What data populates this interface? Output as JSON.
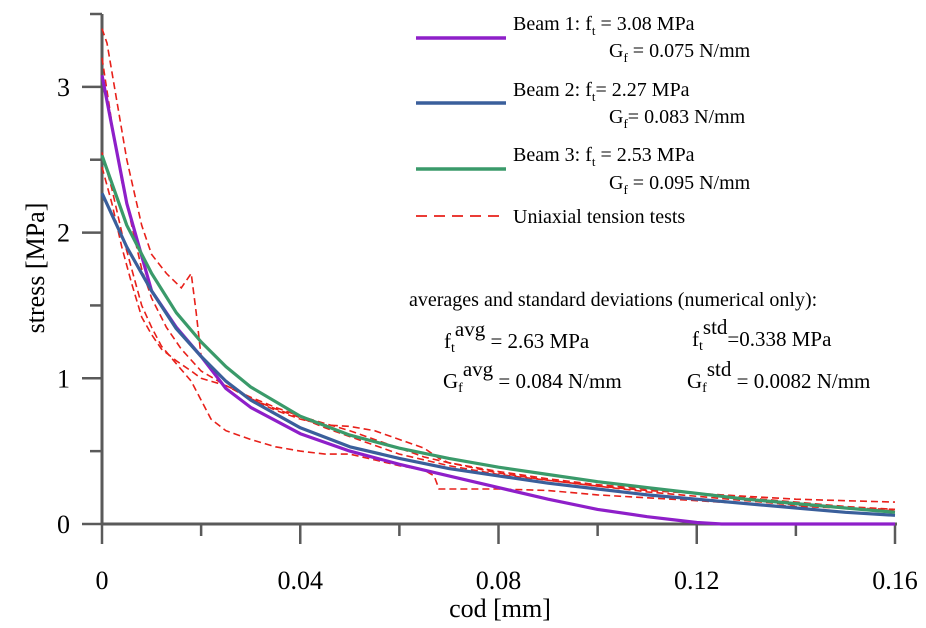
{
  "chart_data": {
    "type": "line",
    "xlabel": "cod [mm]",
    "ylabel": "stress [MPa]",
    "xlim": [
      0,
      0.16
    ],
    "ylim": [
      0,
      3.5
    ],
    "x_ticks": [
      0,
      0.04,
      0.08,
      0.12,
      0.16
    ],
    "x_tick_labels": [
      "0",
      "0.04",
      "0.08",
      "0.12",
      "0.16"
    ],
    "y_ticks": [
      0,
      1,
      2,
      3
    ],
    "y_tick_labels": [
      "0",
      "1",
      "2",
      "3"
    ],
    "grid": false,
    "legend_position": "top-right",
    "series": [
      {
        "name": "Beam 1",
        "legend_line1": "Beam 1: f",
        "legend_line1_sub": "t",
        "legend_line1_tail": " = 3.08 MPa",
        "legend_line2": "G",
        "legend_line2_sub": "f",
        "legend_line2_tail": " = 0.075 N/mm",
        "color": "#8e1fc9",
        "dash": "solid",
        "x": [
          0,
          0.005,
          0.01,
          0.015,
          0.02,
          0.025,
          0.03,
          0.04,
          0.05,
          0.06,
          0.07,
          0.08,
          0.09,
          0.1,
          0.11,
          0.12,
          0.125,
          0.13,
          0.14,
          0.15,
          0.16
        ],
        "y": [
          3.08,
          2.2,
          1.6,
          1.35,
          1.15,
          0.93,
          0.8,
          0.62,
          0.5,
          0.41,
          0.33,
          0.25,
          0.17,
          0.1,
          0.05,
          0.01,
          0,
          0,
          0,
          0,
          0
        ]
      },
      {
        "name": "Beam 2",
        "legend_line1": "Beam 2: f",
        "legend_line1_sub": "t",
        "legend_line1_tail": "= 2.27 MPa",
        "legend_line2": "G",
        "legend_line2_sub": "f",
        "legend_line2_tail": "= 0.083 N/mm",
        "color": "#3a5f9b",
        "dash": "solid",
        "x": [
          0,
          0.005,
          0.01,
          0.015,
          0.02,
          0.025,
          0.03,
          0.04,
          0.05,
          0.06,
          0.07,
          0.08,
          0.09,
          0.1,
          0.11,
          0.12,
          0.13,
          0.14,
          0.15,
          0.16
        ],
        "y": [
          2.27,
          1.9,
          1.6,
          1.34,
          1.15,
          0.98,
          0.85,
          0.66,
          0.53,
          0.45,
          0.38,
          0.33,
          0.28,
          0.24,
          0.2,
          0.17,
          0.14,
          0.11,
          0.08,
          0.06
        ]
      },
      {
        "name": "Beam 3",
        "legend_line1": "Beam 3: f",
        "legend_line1_sub": "t",
        "legend_line1_tail": " = 2.53 MPa",
        "legend_line2": "G",
        "legend_line2_sub": "f",
        "legend_line2_tail": " = 0.095 N/mm",
        "color": "#3a9a6a",
        "dash": "solid",
        "x": [
          0,
          0.005,
          0.01,
          0.015,
          0.02,
          0.025,
          0.03,
          0.04,
          0.05,
          0.06,
          0.07,
          0.08,
          0.09,
          0.1,
          0.11,
          0.12,
          0.13,
          0.14,
          0.15,
          0.16
        ],
        "y": [
          2.53,
          2.05,
          1.72,
          1.45,
          1.25,
          1.08,
          0.94,
          0.74,
          0.61,
          0.52,
          0.45,
          0.39,
          0.34,
          0.29,
          0.25,
          0.21,
          0.17,
          0.14,
          0.11,
          0.08
        ]
      },
      {
        "name": "Uniaxial tension tests",
        "legend_line1": "Uniaxial tension tests",
        "color": "#e8201a",
        "dash": "dashed",
        "curves": [
          {
            "x": [
              0,
              0.001,
              0.003,
              0.005,
              0.008,
              0.01,
              0.013,
              0.016,
              0.018,
              0.019,
              0.02,
              0.025,
              0.03,
              0.035,
              0.04,
              0.045,
              0.05,
              0.055,
              0.06,
              0.065,
              0.068,
              0.07,
              0.08,
              0.09,
              0.1,
              0.11,
              0.12,
              0.13,
              0.14,
              0.15,
              0.16
            ],
            "y": [
              3.4,
              3.3,
              2.9,
              2.5,
              2.05,
              1.85,
              1.72,
              1.62,
              1.72,
              1.45,
              1.15,
              0.98,
              0.86,
              0.78,
              0.72,
              0.68,
              0.67,
              0.64,
              0.58,
              0.52,
              0.45,
              0.42,
              0.35,
              0.3,
              0.26,
              0.23,
              0.21,
              0.19,
              0.17,
              0.16,
              0.15
            ]
          },
          {
            "x": [
              0,
              0.002,
              0.004,
              0.006,
              0.008,
              0.01,
              0.012,
              0.015,
              0.018,
              0.02,
              0.022,
              0.025,
              0.03,
              0.035,
              0.04,
              0.045,
              0.05,
              0.055,
              0.06,
              0.065,
              0.067,
              0.068,
              0.07,
              0.08,
              0.09,
              0.1,
              0.11,
              0.12,
              0.13,
              0.14,
              0.15,
              0.16
            ],
            "y": [
              2.55,
              2.3,
              2.0,
              1.75,
              1.5,
              1.35,
              1.22,
              1.1,
              0.98,
              0.85,
              0.72,
              0.64,
              0.58,
              0.53,
              0.5,
              0.48,
              0.48,
              0.44,
              0.4,
              0.37,
              0.33,
              0.24,
              0.24,
              0.24,
              0.23,
              0.2,
              0.18,
              0.16,
              0.14,
              0.12,
              0.11,
              0.1
            ]
          },
          {
            "x": [
              0,
              0.002,
              0.004,
              0.006,
              0.008,
              0.01,
              0.013,
              0.016,
              0.02,
              0.025,
              0.03,
              0.035,
              0.04,
              0.045,
              0.05,
              0.055,
              0.06,
              0.065,
              0.07,
              0.08,
              0.09,
              0.1,
              0.11,
              0.12,
              0.13,
              0.14,
              0.15,
              0.16
            ],
            "y": [
              3.2,
              2.75,
              2.35,
              2.05,
              1.75,
              1.55,
              1.35,
              1.2,
              1.05,
              0.95,
              0.87,
              0.8,
              0.74,
              0.69,
              0.64,
              0.58,
              0.52,
              0.46,
              0.42,
              0.36,
              0.31,
              0.27,
              0.24,
              0.21,
              0.18,
              0.15,
              0.12,
              0.1
            ]
          },
          {
            "x": [
              0,
              0.002,
              0.004,
              0.006,
              0.008,
              0.01,
              0.012,
              0.015,
              0.018,
              0.02,
              0.025,
              0.03,
              0.035,
              0.04,
              0.045,
              0.05,
              0.055,
              0.06,
              0.065,
              0.07,
              0.08,
              0.09,
              0.1,
              0.11,
              0.12,
              0.13,
              0.14,
              0.15,
              0.16
            ],
            "y": [
              2.45,
              2.2,
              1.9,
              1.65,
              1.42,
              1.3,
              1.2,
              1.12,
              1.05,
              1.0,
              0.95,
              0.86,
              0.79,
              0.73,
              0.66,
              0.6,
              0.54,
              0.48,
              0.44,
              0.4,
              0.34,
              0.3,
              0.26,
              0.22,
              0.19,
              0.16,
              0.13,
              0.11,
              0.09
            ]
          }
        ]
      }
    ],
    "annotation": {
      "header": "averages and standard deviations (numerical only):",
      "ft_base": "f",
      "ft_sub": "t",
      "avg_sup": "avg",
      "std_sup": "std",
      "ft_avg_value": " = 2.63 MPa",
      "ft_std_value": "=0.338 MPa",
      "gf_base": "G",
      "gf_sub": "f",
      "gf_avg_value": " = 0.084 N/mm",
      "gf_std_value": " = 0.0082 N/mm"
    },
    "axis_color": "#5a5a5a"
  }
}
